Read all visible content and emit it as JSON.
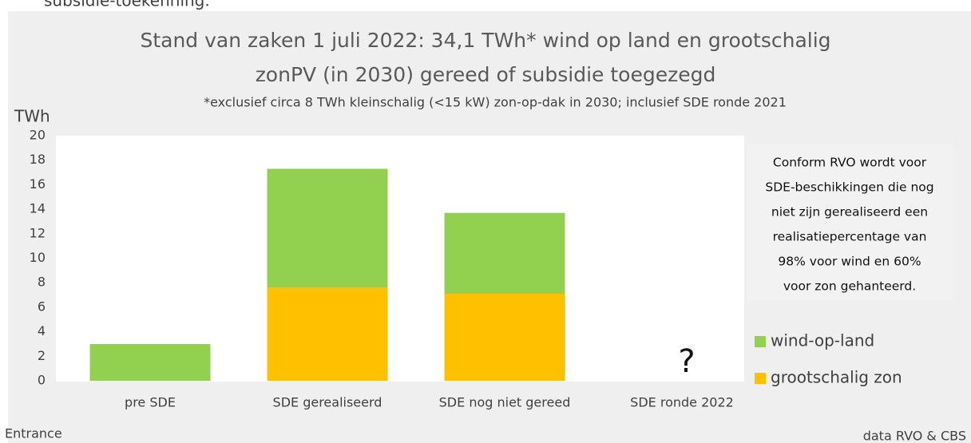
{
  "caption_fragment": "subsidie-toekenning.",
  "footer_left": "Entrance",
  "chart_data": {
    "type": "stacked-bar",
    "title_lines": [
      "Stand van zaken 1 juli 2022: 34,1 TWh* wind op land en grootschalig",
      "zonPV (in 2030) gereed of subsidie toegezegd"
    ],
    "subtitle": "*exclusief circa 8 TWh kleinschalig (<15 kW) zon-op-dak in 2030; inclusief SDE ronde 2021",
    "y_label": "TWh",
    "categories": [
      "pre SDE",
      "SDE gerealiseerd",
      "SDE nog niet gereed",
      "SDE ronde 2022"
    ],
    "series": [
      {
        "name": "wind-op-land",
        "color": "#92d050",
        "values": [
          3.0,
          9.7,
          6.6,
          null
        ]
      },
      {
        "name": "grootschalig zon",
        "color": "#ffc000",
        "values": [
          0,
          7.6,
          7.1,
          null
        ]
      }
    ],
    "ylim": [
      0,
      20
    ],
    "yticks": [
      0,
      2,
      4,
      6,
      8,
      10,
      12,
      14,
      16,
      18,
      20
    ],
    "grid": false,
    "legend": "right",
    "note_lines": [
      "Conform RVO wordt voor",
      "SDE-beschikkingen die nog",
      "niet zijn gerealiseerd een",
      "realisatiepercentage van",
      "98% voor wind en 60%",
      "voor zon gehanteerd."
    ],
    "question_mark": "?",
    "source": "data RVO & CBS"
  }
}
